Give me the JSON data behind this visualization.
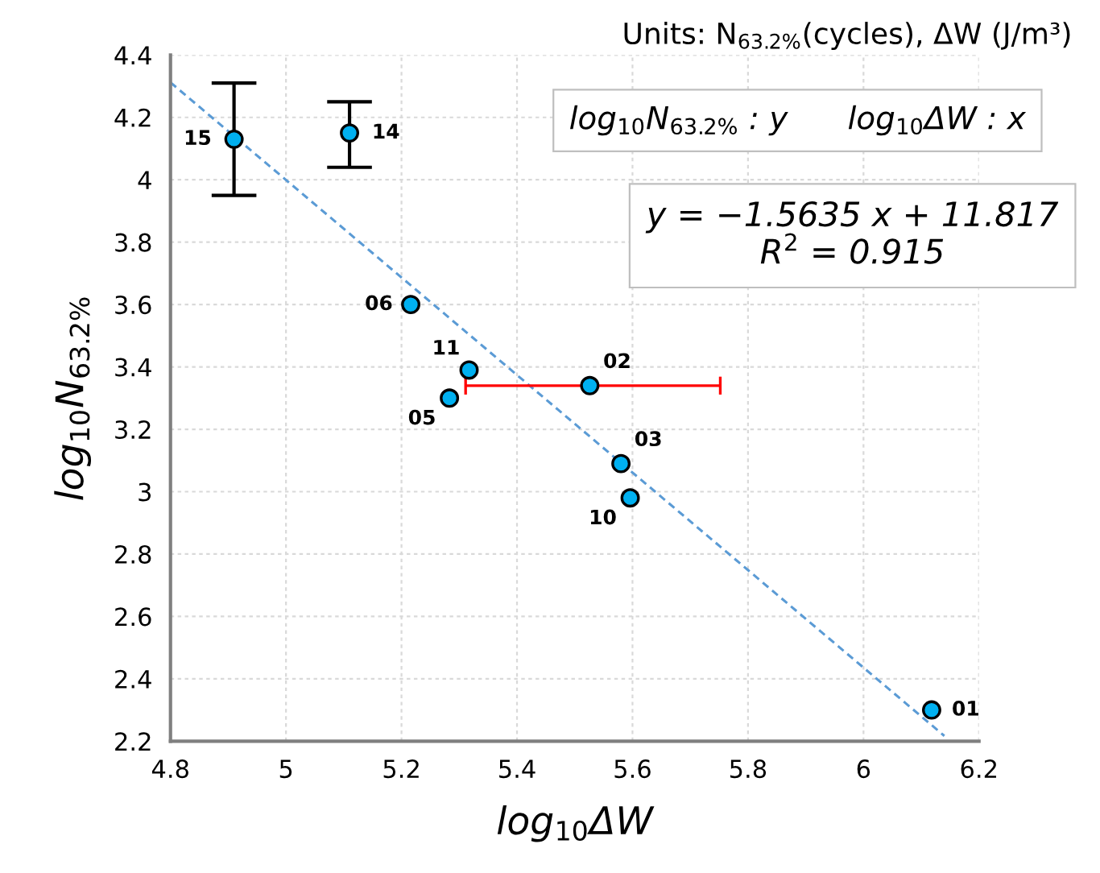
{
  "chart_data": {
    "type": "scatter",
    "title": "Units: N$_{63.2%}$(cycles), ΔW (J/m³)",
    "xlabel": "log$_{10}$ΔW",
    "ylabel": "log$_{10}$N$_{63.2%}$",
    "series": [
      {
        "color": "#00b0f0",
        "marker": "circle",
        "x": [
          6.118,
          5.526,
          5.58,
          5.283,
          5.216,
          5.596,
          5.317,
          5.11,
          4.91
        ],
        "values": [
          2.3,
          3.34,
          3.09,
          3.3,
          3.6,
          2.98,
          3.39,
          4.15,
          4.13
        ],
        "errors": [
          null,
          null,
          null,
          null,
          null,
          null,
          null,
          [
            4.04,
            4.25
          ],
          [
            3.95,
            4.31
          ]
        ],
        "xerrors": [
          null,
          [
            5.311,
            5.752
          ],
          null,
          null,
          null,
          null,
          null,
          null,
          null
        ]
      },
      {
        "type": "line",
        "color": "#5b9bd5",
        "line_style": "dashed",
        "x": [
          4.8,
          6.14
        ],
        "values": [
          4.312,
          2.217
        ]
      }
    ],
    "xlim": [
      4.8,
      6.2
    ],
    "xticks": [
      4.8,
      5,
      5.2,
      5.4,
      5.6,
      5.8,
      6,
      6.2
    ],
    "ylim": [
      2.2,
      4.4
    ],
    "yticks": [
      2.2,
      2.4,
      2.6,
      2.8,
      3,
      3.2,
      3.4,
      3.6,
      3.8,
      4,
      4.2,
      4.4
    ],
    "grid": true,
    "annotations": [
      {
        "text": "01",
        "x": 6.118,
        "y": 2.3
      },
      {
        "text": "02",
        "x": 5.526,
        "y": 3.34
      },
      {
        "text": "03",
        "x": 5.58,
        "y": 3.09
      },
      {
        "text": "05",
        "x": 5.283,
        "y": 3.3
      },
      {
        "text": "06",
        "x": 5.216,
        "y": 3.6
      },
      {
        "text": "10",
        "x": 5.596,
        "y": 2.98
      },
      {
        "text": "11",
        "x": 5.317,
        "y": 3.39
      },
      {
        "text": "14",
        "x": 5.11,
        "y": 4.15
      },
      {
        "text": "15",
        "x": 4.91,
        "y": 4.13
      },
      "log$_{10}$N$_{63.2%}$ : y      log$_{10}$ΔW : x",
      "y = −1.5635 x + 11.817\nR$^{2}$ = 0.915"
    ]
  }
}
